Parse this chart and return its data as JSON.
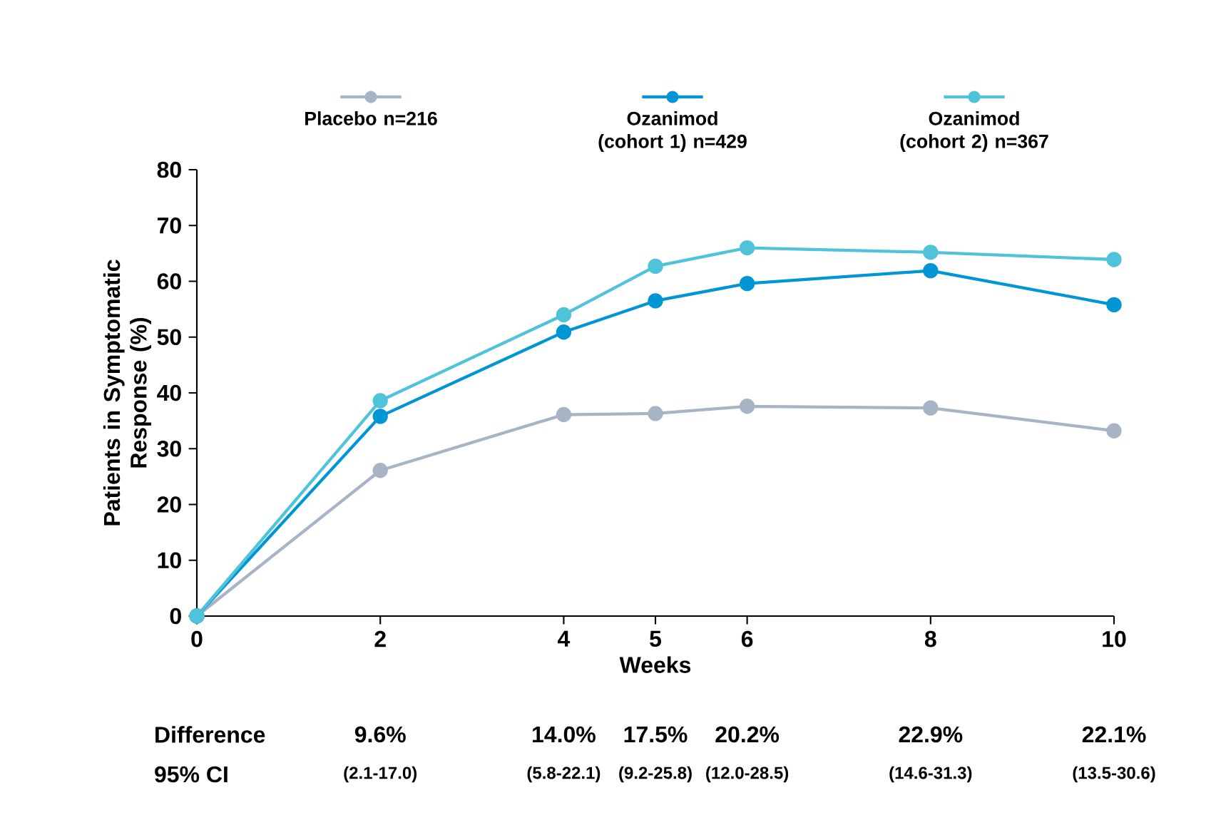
{
  "chart_data": {
    "type": "line",
    "xlabel": "Weeks",
    "ylabel": "Patients in Symptomatic Response (%)",
    "x": [
      0,
      2,
      4,
      5,
      6,
      8,
      10
    ],
    "series": [
      {
        "name": "Placebo n=216",
        "color": "#a7b4c5",
        "values": [
          0,
          26.1,
          36.1,
          36.3,
          37.6,
          37.3,
          33.2
        ]
      },
      {
        "name": "Ozanimod (cohort 1) n=429",
        "color": "#0096d6",
        "values": [
          0,
          35.8,
          50.9,
          56.5,
          59.6,
          61.9,
          55.8
        ]
      },
      {
        "name": "Ozanimod (cohort 2) n=367",
        "color": "#4fc3d9",
        "values": [
          0,
          38.6,
          54.0,
          62.7,
          66.0,
          65.2,
          63.9
        ]
      }
    ],
    "xlim": [
      0,
      10
    ],
    "ylim": [
      0,
      80
    ],
    "xticks": [
      0,
      2,
      4,
      5,
      6,
      8,
      10
    ],
    "yticks": [
      0,
      10,
      20,
      30,
      40,
      50,
      60,
      70,
      80
    ],
    "grid": false,
    "legend": "top",
    "marker": "circle",
    "line_style": "solid",
    "annotations": [
      "Difference",
      "95% CI",
      "9.6%",
      "(2.1-17.0)",
      "14.0%",
      "(5.8-22.1)",
      "17.5%",
      "(9.2-25.8)",
      "20.2%",
      "(12.0-28.5)",
      "22.9%",
      "(14.6-31.3)",
      "22.1%",
      "(13.5-30.6)"
    ]
  }
}
